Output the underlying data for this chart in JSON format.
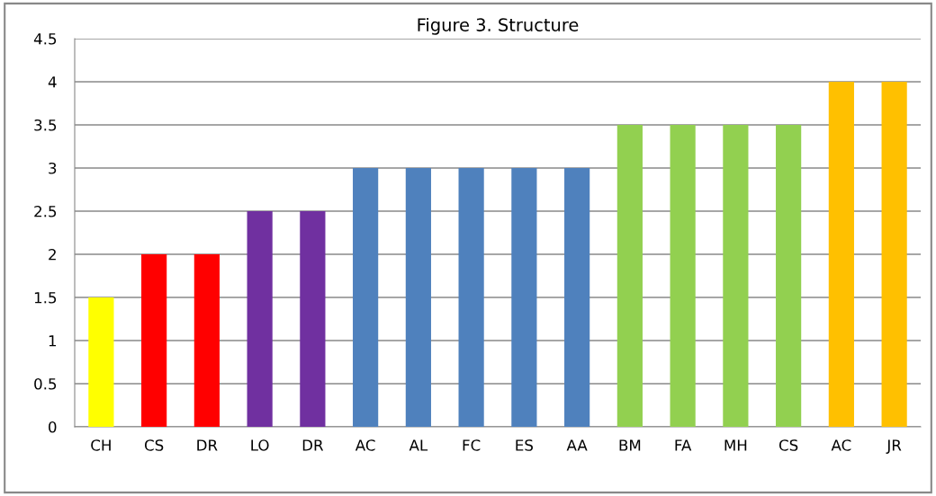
{
  "chart_data": {
    "type": "bar",
    "title": "Figure 3. Structure",
    "categories": [
      "CH",
      "CS",
      "DR",
      "LO",
      "DR",
      "AC",
      "AL",
      "FC",
      "ES",
      "AA",
      "BM",
      "FA",
      "MH",
      "CS",
      "AC",
      "JR"
    ],
    "values": [
      1.5,
      2,
      2,
      2.5,
      2.5,
      3,
      3,
      3,
      3,
      3,
      3.5,
      3.5,
      3.5,
      3.5,
      4,
      4
    ],
    "colors": [
      "#ffff00",
      "#ff0000",
      "#ff0000",
      "#7030a0",
      "#7030a0",
      "#4f81bd",
      "#4f81bd",
      "#4f81bd",
      "#4f81bd",
      "#4f81bd",
      "#92d050",
      "#92d050",
      "#92d050",
      "#92d050",
      "#ffc000",
      "#ffc000"
    ],
    "ylim": [
      0,
      4.5
    ],
    "yticks": [
      0,
      0.5,
      1,
      1.5,
      2,
      2.5,
      3,
      3.5,
      4,
      4.5
    ],
    "grid": "y",
    "legend": false
  }
}
